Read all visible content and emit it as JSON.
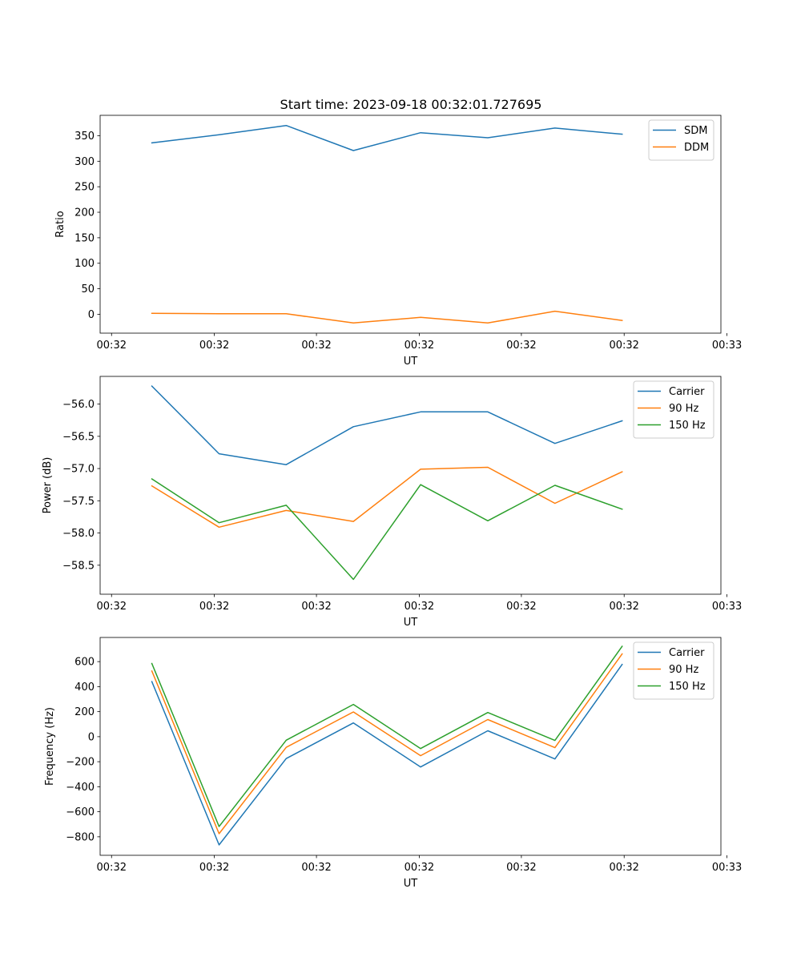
{
  "figure": {
    "title": "Start time: 2023-09-18 00:32:01.727695"
  },
  "colors": {
    "blue": "#1f77b4",
    "orange": "#ff7f0e",
    "green": "#2ca02c"
  },
  "chart_data": [
    {
      "type": "line",
      "title": "",
      "xlabel": "UT",
      "ylabel": "Ratio",
      "x": [
        0,
        1,
        2,
        3,
        4,
        5,
        6,
        7
      ],
      "xlim": [
        -0.77,
        8.47
      ],
      "x_ticks": [
        -0.6,
        0.93,
        2.45,
        3.98,
        5.5,
        7.03,
        8.56
      ],
      "x_tick_labels": [
        "00:32",
        "00:32",
        "00:32",
        "00:32",
        "00:32",
        "00:32",
        "00:33"
      ],
      "ylim": [
        -37,
        390
      ],
      "y_ticks": [
        0,
        50,
        100,
        150,
        200,
        250,
        300,
        350
      ],
      "y_tick_labels": [
        "0",
        "50",
        "100",
        "150",
        "200",
        "250",
        "300",
        "350"
      ],
      "legend": "top-right",
      "grid": false,
      "series": [
        {
          "name": "SDM",
          "color": "#1f77b4",
          "values": [
            336,
            352,
            370,
            321,
            356,
            346,
            365,
            353
          ]
        },
        {
          "name": "DDM",
          "color": "#ff7f0e",
          "values": [
            2,
            1,
            1,
            -17,
            -6,
            -17,
            6,
            -12
          ]
        }
      ]
    },
    {
      "type": "line",
      "title": "",
      "xlabel": "UT",
      "ylabel": "Power (dB)",
      "x": [
        0,
        1,
        2,
        3,
        4,
        5,
        6,
        7
      ],
      "xlim": [
        -0.77,
        8.47
      ],
      "x_ticks": [
        -0.6,
        0.93,
        2.45,
        3.98,
        5.5,
        7.03,
        8.56
      ],
      "x_tick_labels": [
        "00:32",
        "00:32",
        "00:32",
        "00:32",
        "00:32",
        "00:32",
        "00:33"
      ],
      "ylim": [
        -58.95,
        -55.57
      ],
      "y_ticks": [
        -58.5,
        -58.0,
        -57.5,
        -57.0,
        -56.5,
        -56.0
      ],
      "y_tick_labels": [
        "−58.5",
        "−58.0",
        "−57.5",
        "−57.0",
        "−56.5",
        "−56.0"
      ],
      "legend": "top-right",
      "grid": false,
      "series": [
        {
          "name": "Carrier",
          "color": "#1f77b4",
          "values": [
            -55.72,
            -56.77,
            -56.94,
            -56.35,
            -56.12,
            -56.12,
            -56.61,
            -56.26
          ]
        },
        {
          "name": "90 Hz",
          "color": "#ff7f0e",
          "values": [
            -57.27,
            -57.91,
            -57.65,
            -57.82,
            -57.01,
            -56.98,
            -57.54,
            -57.05
          ]
        },
        {
          "name": "150 Hz",
          "color": "#2ca02c",
          "values": [
            -57.16,
            -57.84,
            -57.57,
            -58.72,
            -57.25,
            -57.81,
            -57.26,
            -57.63
          ]
        }
      ]
    },
    {
      "type": "line",
      "title": "",
      "xlabel": "UT",
      "ylabel": "Frequency (Hz)",
      "x": [
        0,
        1,
        2,
        3,
        4,
        5,
        6,
        7
      ],
      "xlim": [
        -0.77,
        8.47
      ],
      "x_ticks": [
        -0.6,
        0.93,
        2.45,
        3.98,
        5.5,
        7.03,
        8.56
      ],
      "x_tick_labels": [
        "00:32",
        "00:32",
        "00:32",
        "00:32",
        "00:32",
        "00:32",
        "00:33"
      ],
      "ylim": [
        -948,
        793
      ],
      "y_ticks": [
        -800,
        -600,
        -400,
        -200,
        0,
        200,
        400,
        600
      ],
      "y_tick_labels": [
        "−800",
        "−600",
        "−400",
        "−200",
        "0",
        "200",
        "400",
        "600"
      ],
      "legend": "top-right",
      "grid": false,
      "series": [
        {
          "name": "Carrier",
          "color": "#1f77b4",
          "values": [
            440,
            -865,
            -175,
            110,
            -242,
            47,
            -178,
            577
          ]
        },
        {
          "name": "90 Hz",
          "color": "#ff7f0e",
          "values": [
            525,
            -775,
            -85,
            198,
            -152,
            137,
            -88,
            662
          ]
        },
        {
          "name": "150 Hz",
          "color": "#2ca02c",
          "values": [
            585,
            -718,
            -28,
            258,
            -95,
            193,
            -30,
            722
          ]
        }
      ]
    }
  ]
}
